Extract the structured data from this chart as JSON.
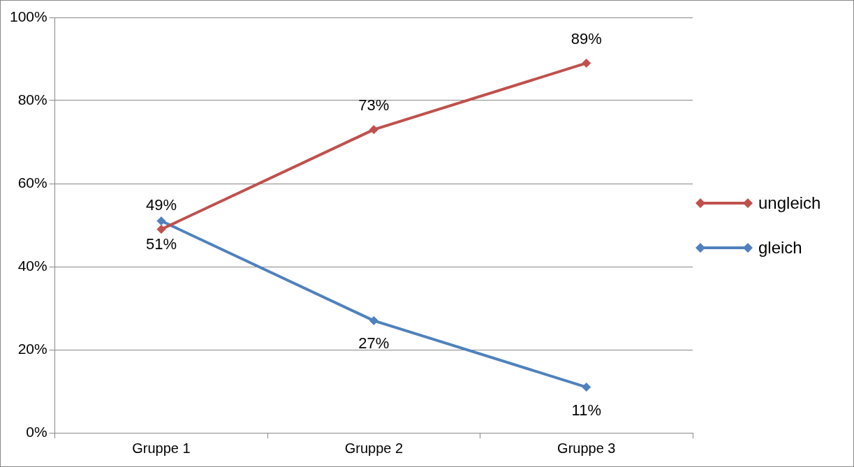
{
  "chart_data": {
    "type": "line",
    "categories": [
      "Gruppe 1",
      "Gruppe 2",
      "Gruppe 3"
    ],
    "series": [
      {
        "name": "ungleich",
        "color": "#c0504d",
        "values": [
          49,
          73,
          89
        ],
        "value_labels": [
          "49%",
          "73%",
          "89%"
        ]
      },
      {
        "name": "gleich",
        "color": "#4f81bd",
        "values": [
          51,
          27,
          11
        ],
        "value_labels": [
          "51%",
          "27%",
          "11%"
        ]
      }
    ],
    "ylim": [
      0,
      100
    ],
    "yticks": [
      {
        "value": 0,
        "label": "0%"
      },
      {
        "value": 20,
        "label": "20%"
      },
      {
        "value": 40,
        "label": "40%"
      },
      {
        "value": 60,
        "label": "60%"
      },
      {
        "value": 80,
        "label": "80%"
      },
      {
        "value": 100,
        "label": "100%"
      }
    ],
    "grid": "y",
    "legend": "right",
    "marker": "diamond",
    "line_style": "solid"
  }
}
